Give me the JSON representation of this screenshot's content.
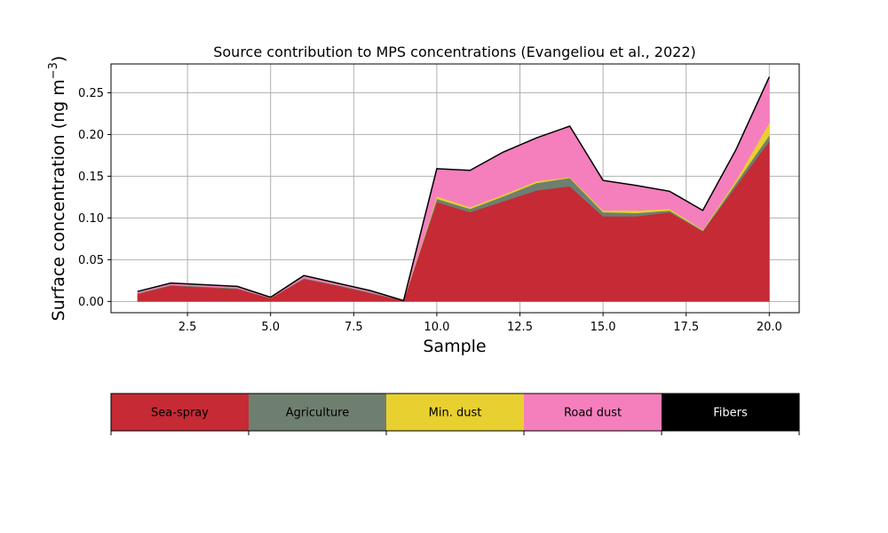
{
  "chart_data": {
    "type": "area",
    "stacked": true,
    "title": "Source contribution to MPS concentrations (Evangeliou et al., 2022)",
    "xlabel": "Sample",
    "ylabel_text": "Surface concentration (ng m",
    "ylabel_sup": "−3",
    "ylabel_close": ")",
    "xlim": [
      0.2,
      20.9
    ],
    "ylim": [
      -0.0135,
      0.2845
    ],
    "xticks": [
      2.5,
      5.0,
      7.5,
      10.0,
      12.5,
      15.0,
      17.5,
      20.0
    ],
    "xtick_labels": [
      "2.5",
      "5.0",
      "7.5",
      "10.0",
      "12.5",
      "15.0",
      "17.5",
      "20.0"
    ],
    "yticks": [
      0.0,
      0.05,
      0.1,
      0.15,
      0.2,
      0.25
    ],
    "ytick_labels": [
      "0.00",
      "0.05",
      "0.10",
      "0.15",
      "0.20",
      "0.25"
    ],
    "grid": true,
    "x": [
      1,
      2,
      3,
      4,
      5,
      6,
      7,
      8,
      9,
      10,
      11,
      12,
      13,
      14,
      15,
      16,
      17,
      18,
      19,
      20
    ],
    "series": [
      {
        "name": "Sea-spray",
        "color": "#c52a35",
        "values": [
          0.009,
          0.019,
          0.017,
          0.015,
          0.004,
          0.027,
          0.019,
          0.01,
          0.001,
          0.119,
          0.107,
          0.12,
          0.133,
          0.138,
          0.102,
          0.102,
          0.107,
          0.084,
          0.138,
          0.192
        ]
      },
      {
        "name": "Agriculture",
        "color": "#6e7f6f",
        "values": [
          0.001,
          0.001,
          0.001,
          0.001,
          0.0,
          0.001,
          0.001,
          0.001,
          0.0,
          0.004,
          0.004,
          0.006,
          0.009,
          0.01,
          0.005,
          0.004,
          0.002,
          0.001,
          0.004,
          0.007
        ]
      },
      {
        "name": "Min. dust",
        "color": "#e8d030",
        "values": [
          0.0,
          0.0,
          0.0,
          0.0,
          0.0,
          0.0,
          0.0,
          0.0,
          0.0,
          0.003,
          0.002,
          0.002,
          0.002,
          0.001,
          0.002,
          0.003,
          0.002,
          0.001,
          0.003,
          0.015
        ]
      },
      {
        "name": "Road dust",
        "color": "#f47fbc",
        "values": [
          0.002,
          0.002,
          0.002,
          0.002,
          0.001,
          0.003,
          0.002,
          0.002,
          0.0,
          0.033,
          0.044,
          0.051,
          0.052,
          0.061,
          0.036,
          0.03,
          0.021,
          0.023,
          0.037,
          0.055
        ]
      },
      {
        "name": "Fibers",
        "color": "#000000",
        "values": [
          0.0,
          0.0,
          0.0,
          0.0,
          0.0,
          0.0,
          0.0,
          0.0,
          0.0,
          0.0,
          0.0,
          0.0,
          0.0,
          0.0,
          0.0,
          0.0,
          0.0,
          0.0,
          0.0,
          0.0
        ]
      }
    ],
    "legend": {
      "placement": "bottom",
      "entries": [
        "Sea-spray",
        "Agriculture",
        "Min. dust",
        "Road dust",
        "Fibers"
      ],
      "text_colors": [
        "#000000",
        "#000000",
        "#000000",
        "#000000",
        "#ffffff"
      ]
    }
  }
}
